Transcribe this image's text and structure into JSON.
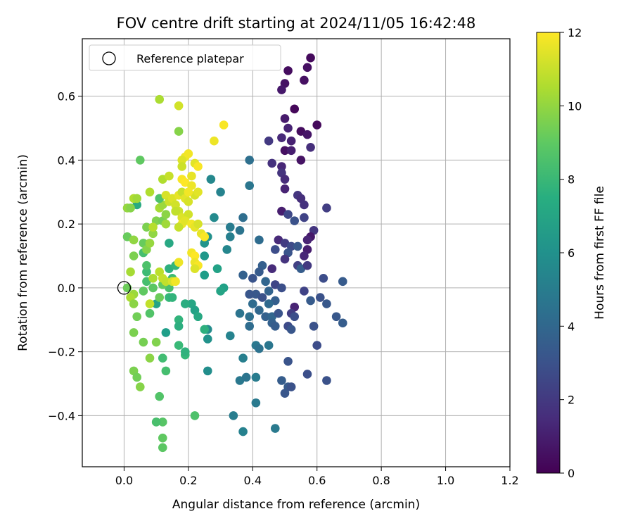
{
  "chart_data": {
    "type": "scatter",
    "title": "FOV centre drift starting at 2024/11/05 16:42:48",
    "xlabel": "Angular distance from reference (arcmin)",
    "ylabel": "Rotation from reference (arcmin)",
    "xlim": [
      -0.13,
      1.2
    ],
    "ylim": [
      -0.56,
      0.78
    ],
    "xticks": [
      0.0,
      0.2,
      0.4,
      0.6,
      0.8,
      1.0,
      1.2
    ],
    "xtick_labels": [
      "0.0",
      "0.2",
      "0.4",
      "0.6",
      "0.8",
      "1.0",
      "1.2"
    ],
    "yticks": [
      -0.4,
      -0.2,
      0.0,
      0.2,
      0.4,
      0.6
    ],
    "ytick_labels": [
      "−0.4",
      "−0.2",
      "0.0",
      "0.2",
      "0.4",
      "0.6"
    ],
    "grid": true,
    "legend": {
      "placement": "top-left",
      "entries": [
        "Reference platepar"
      ]
    },
    "reference_point": {
      "x": 0.0,
      "y": 0.0
    },
    "colorbar": {
      "label": "Hours from first FF file",
      "range": [
        0,
        12
      ],
      "ticks": [
        0,
        2,
        4,
        6,
        8,
        10,
        12
      ],
      "tick_labels": [
        "0",
        "2",
        "4",
        "6",
        "8",
        "10",
        "12"
      ],
      "colormap": "viridis"
    },
    "points": [
      {
        "x": 0.58,
        "y": 0.72,
        "h": 0.3
      },
      {
        "x": 0.51,
        "y": 0.68,
        "h": 0.4
      },
      {
        "x": 0.57,
        "y": 0.69,
        "h": 0.5
      },
      {
        "x": 0.5,
        "y": 0.64,
        "h": 0.6
      },
      {
        "x": 0.49,
        "y": 0.62,
        "h": 0.8
      },
      {
        "x": 0.56,
        "y": 0.65,
        "h": 0.5
      },
      {
        "x": 0.53,
        "y": 0.56,
        "h": 0.2
      },
      {
        "x": 0.5,
        "y": 0.53,
        "h": 0.9
      },
      {
        "x": 0.51,
        "y": 0.5,
        "h": 1.2
      },
      {
        "x": 0.55,
        "y": 0.49,
        "h": 0.4
      },
      {
        "x": 0.57,
        "y": 0.48,
        "h": 0.7
      },
      {
        "x": 0.6,
        "y": 0.51,
        "h": 0.3
      },
      {
        "x": 0.49,
        "y": 0.47,
        "h": 1.4
      },
      {
        "x": 0.45,
        "y": 0.46,
        "h": 2.0
      },
      {
        "x": 0.52,
        "y": 0.46,
        "h": 1.1
      },
      {
        "x": 0.58,
        "y": 0.44,
        "h": 1.6
      },
      {
        "x": 0.5,
        "y": 0.43,
        "h": 0.5
      },
      {
        "x": 0.52,
        "y": 0.43,
        "h": 1.0
      },
      {
        "x": 0.55,
        "y": 0.4,
        "h": 0.6
      },
      {
        "x": 0.46,
        "y": 0.39,
        "h": 1.7
      },
      {
        "x": 0.49,
        "y": 0.38,
        "h": 1.3
      },
      {
        "x": 0.49,
        "y": 0.36,
        "h": 1.8
      },
      {
        "x": 0.5,
        "y": 0.34,
        "h": 1.5
      },
      {
        "x": 0.5,
        "y": 0.31,
        "h": 1.2
      },
      {
        "x": 0.54,
        "y": 0.29,
        "h": 1.9
      },
      {
        "x": 0.55,
        "y": 0.28,
        "h": 1.6
      },
      {
        "x": 0.56,
        "y": 0.26,
        "h": 1.7
      },
      {
        "x": 0.63,
        "y": 0.25,
        "h": 2.2
      },
      {
        "x": 0.49,
        "y": 0.24,
        "h": 1.0
      },
      {
        "x": 0.51,
        "y": 0.23,
        "h": 2.6
      },
      {
        "x": 0.53,
        "y": 0.21,
        "h": 3.0
      },
      {
        "x": 0.56,
        "y": 0.22,
        "h": 2.4
      },
      {
        "x": 0.59,
        "y": 0.18,
        "h": 1.9
      },
      {
        "x": 0.58,
        "y": 0.16,
        "h": 0.8
      },
      {
        "x": 0.57,
        "y": 0.15,
        "h": 1.2
      },
      {
        "x": 0.48,
        "y": 0.15,
        "h": 1.4
      },
      {
        "x": 0.5,
        "y": 0.14,
        "h": 2.1
      },
      {
        "x": 0.52,
        "y": 0.13,
        "h": 2.7
      },
      {
        "x": 0.54,
        "y": 0.13,
        "h": 3.3
      },
      {
        "x": 0.57,
        "y": 0.12,
        "h": 1.0
      },
      {
        "x": 0.47,
        "y": 0.12,
        "h": 2.8
      },
      {
        "x": 0.51,
        "y": 0.11,
        "h": 3.1
      },
      {
        "x": 0.56,
        "y": 0.1,
        "h": 1.3
      },
      {
        "x": 0.5,
        "y": 0.09,
        "h": 1.8
      },
      {
        "x": 0.46,
        "y": 0.06,
        "h": 1.5
      },
      {
        "x": 0.54,
        "y": 0.07,
        "h": 2.3
      },
      {
        "x": 0.55,
        "y": 0.06,
        "h": 3.5
      },
      {
        "x": 0.57,
        "y": 0.07,
        "h": 2.0
      },
      {
        "x": 0.43,
        "y": 0.07,
        "h": 3.6
      },
      {
        "x": 0.42,
        "y": 0.05,
        "h": 3.4
      },
      {
        "x": 0.37,
        "y": 0.04,
        "h": 3.7
      },
      {
        "x": 0.4,
        "y": 0.03,
        "h": 3.1
      },
      {
        "x": 0.44,
        "y": 0.02,
        "h": 3.9
      },
      {
        "x": 0.47,
        "y": 0.01,
        "h": 2.5
      },
      {
        "x": 0.49,
        "y": 0.0,
        "h": 2.9
      },
      {
        "x": 0.45,
        "y": -0.01,
        "h": 3.8
      },
      {
        "x": 0.41,
        "y": -0.02,
        "h": 3.3
      },
      {
        "x": 0.39,
        "y": -0.02,
        "h": 3.2
      },
      {
        "x": 0.43,
        "y": -0.03,
        "h": 3.0
      },
      {
        "x": 0.47,
        "y": -0.04,
        "h": 3.6
      },
      {
        "x": 0.56,
        "y": -0.01,
        "h": 2.4
      },
      {
        "x": 0.58,
        "y": -0.04,
        "h": 3.4
      },
      {
        "x": 0.61,
        "y": -0.03,
        "h": 3.0
      },
      {
        "x": 0.63,
        "y": -0.05,
        "h": 3.3
      },
      {
        "x": 0.53,
        "y": -0.06,
        "h": 1.2
      },
      {
        "x": 0.4,
        "y": -0.05,
        "h": 4.2
      },
      {
        "x": 0.45,
        "y": -0.05,
        "h": 4.1
      },
      {
        "x": 0.42,
        "y": -0.07,
        "h": 4.0
      },
      {
        "x": 0.44,
        "y": -0.09,
        "h": 3.7
      },
      {
        "x": 0.46,
        "y": -0.09,
        "h": 3.9
      },
      {
        "x": 0.48,
        "y": -0.08,
        "h": 3.1
      },
      {
        "x": 0.52,
        "y": -0.08,
        "h": 2.2
      },
      {
        "x": 0.53,
        "y": -0.09,
        "h": 2.9
      },
      {
        "x": 0.46,
        "y": -0.11,
        "h": 3.7
      },
      {
        "x": 0.47,
        "y": -0.12,
        "h": 3.5
      },
      {
        "x": 0.51,
        "y": -0.12,
        "h": 2.7
      },
      {
        "x": 0.52,
        "y": -0.13,
        "h": 3.2
      },
      {
        "x": 0.59,
        "y": -0.12,
        "h": 3.0
      },
      {
        "x": 0.66,
        "y": -0.09,
        "h": 3.3
      },
      {
        "x": 0.68,
        "y": -0.11,
        "h": 3.5
      },
      {
        "x": 0.68,
        "y": 0.02,
        "h": 3.4
      },
      {
        "x": 0.62,
        "y": 0.03,
        "h": 2.8
      },
      {
        "x": 0.36,
        "y": -0.08,
        "h": 4.6
      },
      {
        "x": 0.39,
        "y": -0.09,
        "h": 4.4
      },
      {
        "x": 0.39,
        "y": -0.12,
        "h": 4.2
      },
      {
        "x": 0.37,
        "y": -0.22,
        "h": 5.2
      },
      {
        "x": 0.41,
        "y": -0.18,
        "h": 4.8
      },
      {
        "x": 0.42,
        "y": -0.19,
        "h": 4.5
      },
      {
        "x": 0.45,
        "y": -0.18,
        "h": 4.7
      },
      {
        "x": 0.51,
        "y": -0.23,
        "h": 3.1
      },
      {
        "x": 0.49,
        "y": -0.29,
        "h": 3.5
      },
      {
        "x": 0.51,
        "y": -0.31,
        "h": 3.4
      },
      {
        "x": 0.52,
        "y": -0.31,
        "h": 3.0
      },
      {
        "x": 0.5,
        "y": -0.33,
        "h": 3.2
      },
      {
        "x": 0.57,
        "y": -0.27,
        "h": 2.9
      },
      {
        "x": 0.63,
        "y": -0.29,
        "h": 3.0
      },
      {
        "x": 0.6,
        "y": -0.18,
        "h": 2.8
      },
      {
        "x": 0.36,
        "y": -0.29,
        "h": 4.8
      },
      {
        "x": 0.38,
        "y": -0.28,
        "h": 4.6
      },
      {
        "x": 0.41,
        "y": -0.28,
        "h": 5.0
      },
      {
        "x": 0.41,
        "y": -0.36,
        "h": 4.9
      },
      {
        "x": 0.34,
        "y": -0.4,
        "h": 5.1
      },
      {
        "x": 0.37,
        "y": -0.45,
        "h": 5.3
      },
      {
        "x": 0.47,
        "y": -0.44,
        "h": 4.9
      },
      {
        "x": 0.33,
        "y": -0.15,
        "h": 5.4
      },
      {
        "x": 0.26,
        "y": -0.13,
        "h": 5.8
      },
      {
        "x": 0.26,
        "y": -0.16,
        "h": 6.1
      },
      {
        "x": 0.26,
        "y": -0.26,
        "h": 5.9
      },
      {
        "x": 0.37,
        "y": 0.22,
        "h": 4.3
      },
      {
        "x": 0.36,
        "y": 0.18,
        "h": 4.6
      },
      {
        "x": 0.33,
        "y": 0.19,
        "h": 5.0
      },
      {
        "x": 0.33,
        "y": 0.16,
        "h": 5.2
      },
      {
        "x": 0.32,
        "y": 0.12,
        "h": 5.5
      },
      {
        "x": 0.39,
        "y": 0.4,
        "h": 4.4
      },
      {
        "x": 0.39,
        "y": 0.32,
        "h": 4.7
      },
      {
        "x": 0.42,
        "y": 0.15,
        "h": 4.2
      },
      {
        "x": 0.27,
        "y": 0.34,
        "h": 5.6
      },
      {
        "x": 0.3,
        "y": 0.3,
        "h": 5.4
      },
      {
        "x": 0.28,
        "y": 0.22,
        "h": 5.7
      },
      {
        "x": 0.26,
        "y": 0.16,
        "h": 6.0
      },
      {
        "x": 0.25,
        "y": 0.14,
        "h": 6.2
      },
      {
        "x": 0.25,
        "y": 0.1,
        "h": 6.4
      },
      {
        "x": 0.25,
        "y": 0.04,
        "h": 6.6
      },
      {
        "x": 0.29,
        "y": 0.06,
        "h": 6.9
      },
      {
        "x": 0.31,
        "y": 0.0,
        "h": 6.8
      },
      {
        "x": 0.3,
        "y": -0.01,
        "h": 7.0
      },
      {
        "x": 0.21,
        "y": -0.05,
        "h": 7.1
      },
      {
        "x": 0.19,
        "y": -0.05,
        "h": 7.4
      },
      {
        "x": 0.22,
        "y": -0.07,
        "h": 6.9
      },
      {
        "x": 0.23,
        "y": -0.09,
        "h": 7.2
      },
      {
        "x": 0.25,
        "y": -0.13,
        "h": 7.6
      },
      {
        "x": 0.17,
        "y": -0.1,
        "h": 7.8
      },
      {
        "x": 0.17,
        "y": -0.12,
        "h": 7.5
      },
      {
        "x": 0.13,
        "y": -0.14,
        "h": 6.7
      },
      {
        "x": 0.17,
        "y": -0.18,
        "h": 8.1
      },
      {
        "x": 0.19,
        "y": -0.21,
        "h": 8.0
      },
      {
        "x": 0.19,
        "y": -0.2,
        "h": 7.7
      },
      {
        "x": 0.12,
        "y": -0.22,
        "h": 8.3
      },
      {
        "x": 0.13,
        "y": -0.26,
        "h": 8.4
      },
      {
        "x": 0.22,
        "y": -0.4,
        "h": 8.6
      },
      {
        "x": 0.12,
        "y": -0.42,
        "h": 8.8
      },
      {
        "x": 0.1,
        "y": -0.42,
        "h": 8.5
      },
      {
        "x": 0.12,
        "y": -0.47,
        "h": 9.0
      },
      {
        "x": 0.12,
        "y": -0.5,
        "h": 8.9
      },
      {
        "x": 0.11,
        "y": -0.34,
        "h": 8.7
      },
      {
        "x": 0.14,
        "y": 0.14,
        "h": 7.2
      },
      {
        "x": 0.14,
        "y": 0.06,
        "h": 7.6
      },
      {
        "x": 0.16,
        "y": 0.07,
        "h": 7.9
      },
      {
        "x": 0.15,
        "y": 0.03,
        "h": 8.2
      },
      {
        "x": 0.14,
        "y": -0.03,
        "h": 8.0
      },
      {
        "x": 0.15,
        "y": -0.03,
        "h": 7.8
      },
      {
        "x": 0.14,
        "y": 0.0,
        "h": 8.5
      },
      {
        "x": 0.12,
        "y": 0.01,
        "h": 9.1
      },
      {
        "x": 0.1,
        "y": -0.05,
        "h": 7.0
      },
      {
        "x": 0.11,
        "y": -0.03,
        "h": 9.3
      },
      {
        "x": 0.09,
        "y": 0.0,
        "h": 8.9
      },
      {
        "x": 0.08,
        "y": -0.08,
        "h": 8.7
      },
      {
        "x": 0.07,
        "y": 0.02,
        "h": 8.4
      },
      {
        "x": 0.07,
        "y": 0.05,
        "h": 8.2
      },
      {
        "x": 0.07,
        "y": 0.07,
        "h": 8.6
      },
      {
        "x": 0.06,
        "y": -0.01,
        "h": 9.0
      },
      {
        "x": 0.04,
        "y": -0.09,
        "h": 9.4
      },
      {
        "x": 0.03,
        "y": -0.14,
        "h": 9.6
      },
      {
        "x": 0.06,
        "y": -0.17,
        "h": 9.5
      },
      {
        "x": 0.1,
        "y": -0.17,
        "h": 9.7
      },
      {
        "x": 0.08,
        "y": -0.22,
        "h": 9.9
      },
      {
        "x": 0.03,
        "y": -0.26,
        "h": 9.6
      },
      {
        "x": 0.04,
        "y": -0.28,
        "h": 9.4
      },
      {
        "x": 0.05,
        "y": -0.31,
        "h": 9.8
      },
      {
        "x": 0.03,
        "y": -0.02,
        "h": 10.2
      },
      {
        "x": 0.02,
        "y": -0.03,
        "h": 10.5
      },
      {
        "x": 0.03,
        "y": -0.05,
        "h": 9.9
      },
      {
        "x": 0.01,
        "y": 0.0,
        "h": 9.3
      },
      {
        "x": 0.04,
        "y": 0.26,
        "h": 7.3
      },
      {
        "x": 0.05,
        "y": 0.4,
        "h": 9.0
      },
      {
        "x": 0.07,
        "y": 0.19,
        "h": 9.6
      },
      {
        "x": 0.06,
        "y": 0.14,
        "h": 9.2
      },
      {
        "x": 0.06,
        "y": 0.11,
        "h": 8.4
      },
      {
        "x": 0.07,
        "y": 0.12,
        "h": 9.8
      },
      {
        "x": 0.08,
        "y": 0.14,
        "h": 10.1
      },
      {
        "x": 0.09,
        "y": 0.17,
        "h": 10.0
      },
      {
        "x": 0.1,
        "y": 0.21,
        "h": 9.7
      },
      {
        "x": 0.12,
        "y": 0.21,
        "h": 9.5
      },
      {
        "x": 0.13,
        "y": 0.2,
        "h": 10.3
      },
      {
        "x": 0.11,
        "y": 0.25,
        "h": 10.4
      },
      {
        "x": 0.12,
        "y": 0.26,
        "h": 10.2
      },
      {
        "x": 0.13,
        "y": 0.23,
        "h": 9.9
      },
      {
        "x": 0.11,
        "y": 0.28,
        "h": 8.6
      },
      {
        "x": 0.08,
        "y": 0.3,
        "h": 10.6
      },
      {
        "x": 0.09,
        "y": 0.19,
        "h": 10.7
      },
      {
        "x": 0.11,
        "y": 0.05,
        "h": 10.8
      },
      {
        "x": 0.12,
        "y": 0.03,
        "h": 11.0
      },
      {
        "x": 0.13,
        "y": 0.02,
        "h": 10.9
      },
      {
        "x": 0.15,
        "y": 0.02,
        "h": 11.3
      },
      {
        "x": 0.09,
        "y": 0.03,
        "h": 10.5
      },
      {
        "x": 0.03,
        "y": 0.28,
        "h": 10.6
      },
      {
        "x": 0.04,
        "y": 0.28,
        "h": 10.3
      },
      {
        "x": 0.01,
        "y": 0.25,
        "h": 10.1
      },
      {
        "x": 0.02,
        "y": 0.25,
        "h": 9.8
      },
      {
        "x": 0.01,
        "y": 0.16,
        "h": 9.2
      },
      {
        "x": 0.03,
        "y": 0.15,
        "h": 10.0
      },
      {
        "x": 0.03,
        "y": 0.1,
        "h": 9.6
      },
      {
        "x": 0.02,
        "y": 0.05,
        "h": 10.4
      },
      {
        "x": 0.11,
        "y": 0.59,
        "h": 10.5
      },
      {
        "x": 0.17,
        "y": 0.57,
        "h": 11.2
      },
      {
        "x": 0.17,
        "y": 0.49,
        "h": 9.8
      },
      {
        "x": 0.12,
        "y": 0.34,
        "h": 10.6
      },
      {
        "x": 0.14,
        "y": 0.35,
        "h": 11.0
      },
      {
        "x": 0.13,
        "y": 0.29,
        "h": 11.3
      },
      {
        "x": 0.14,
        "y": 0.27,
        "h": 11.1
      },
      {
        "x": 0.15,
        "y": 0.28,
        "h": 11.4
      },
      {
        "x": 0.16,
        "y": 0.26,
        "h": 11.2
      },
      {
        "x": 0.17,
        "y": 0.29,
        "h": 11.6
      },
      {
        "x": 0.18,
        "y": 0.3,
        "h": 11.0
      },
      {
        "x": 0.19,
        "y": 0.28,
        "h": 11.5
      },
      {
        "x": 0.2,
        "y": 0.27,
        "h": 11.3
      },
      {
        "x": 0.17,
        "y": 0.24,
        "h": 11.1
      },
      {
        "x": 0.18,
        "y": 0.22,
        "h": 11.4
      },
      {
        "x": 0.2,
        "y": 0.23,
        "h": 11.2
      },
      {
        "x": 0.18,
        "y": 0.2,
        "h": 11.7
      },
      {
        "x": 0.19,
        "y": 0.21,
        "h": 11.5
      },
      {
        "x": 0.21,
        "y": 0.2,
        "h": 11.8
      },
      {
        "x": 0.22,
        "y": 0.19,
        "h": 11.6
      },
      {
        "x": 0.23,
        "y": 0.2,
        "h": 11.3
      },
      {
        "x": 0.17,
        "y": 0.19,
        "h": 11.0
      },
      {
        "x": 0.16,
        "y": 0.24,
        "h": 10.9
      },
      {
        "x": 0.19,
        "y": 0.41,
        "h": 11.7
      },
      {
        "x": 0.18,
        "y": 0.4,
        "h": 11.4
      },
      {
        "x": 0.2,
        "y": 0.42,
        "h": 11.8
      },
      {
        "x": 0.18,
        "y": 0.38,
        "h": 11.1
      },
      {
        "x": 0.22,
        "y": 0.39,
        "h": 11.5
      },
      {
        "x": 0.23,
        "y": 0.38,
        "h": 11.9
      },
      {
        "x": 0.21,
        "y": 0.35,
        "h": 11.6
      },
      {
        "x": 0.18,
        "y": 0.34,
        "h": 11.9
      },
      {
        "x": 0.19,
        "y": 0.33,
        "h": 12.0
      },
      {
        "x": 0.21,
        "y": 0.32,
        "h": 11.7
      },
      {
        "x": 0.22,
        "y": 0.29,
        "h": 11.3
      },
      {
        "x": 0.2,
        "y": 0.3,
        "h": 11.8
      },
      {
        "x": 0.23,
        "y": 0.3,
        "h": 11.5
      },
      {
        "x": 0.28,
        "y": 0.46,
        "h": 11.7
      },
      {
        "x": 0.31,
        "y": 0.51,
        "h": 11.9
      },
      {
        "x": 0.24,
        "y": 0.17,
        "h": 11.6
      },
      {
        "x": 0.25,
        "y": 0.16,
        "h": 11.9
      },
      {
        "x": 0.21,
        "y": 0.11,
        "h": 11.8
      },
      {
        "x": 0.22,
        "y": 0.1,
        "h": 12.0
      },
      {
        "x": 0.22,
        "y": 0.08,
        "h": 11.7
      },
      {
        "x": 0.23,
        "y": 0.07,
        "h": 11.9
      },
      {
        "x": 0.22,
        "y": 0.06,
        "h": 11.4
      },
      {
        "x": 0.17,
        "y": 0.08,
        "h": 11.7
      },
      {
        "x": 0.16,
        "y": 0.02,
        "h": 11.8
      },
      {
        "x": 0.08,
        "y": -0.05,
        "h": 10.9
      }
    ]
  }
}
